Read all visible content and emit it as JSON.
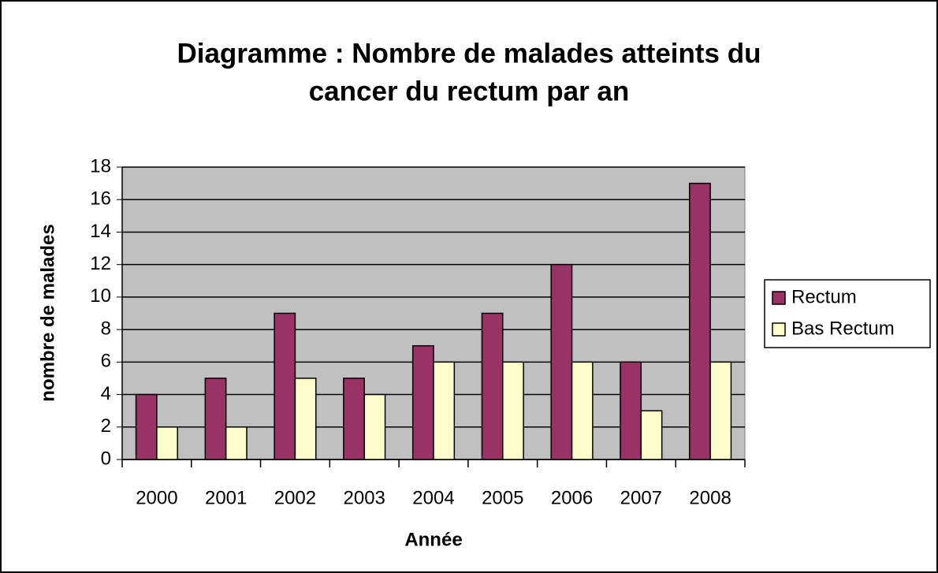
{
  "chart_data": {
    "type": "bar",
    "title": [
      "Diagramme : Nombre de malades atteints du",
      "cancer du rectum par an"
    ],
    "x_label": "Année",
    "y_label": "nombre de malades",
    "categories": [
      "2000",
      "2001",
      "2002",
      "2003",
      "2004",
      "2005",
      "2006",
      "2007",
      "2008"
    ],
    "series": [
      {
        "name": "Rectum",
        "color": "#993366",
        "values": [
          4,
          5,
          9,
          5,
          7,
          9,
          12,
          6,
          17
        ]
      },
      {
        "name": "Bas Rectum",
        "color": "#ffffcc",
        "values": [
          2,
          2,
          5,
          4,
          6,
          6,
          6,
          3,
          6
        ]
      }
    ],
    "ylim": [
      0,
      18
    ],
    "yticks": [
      0,
      2,
      4,
      6,
      8,
      10,
      12,
      14,
      16,
      18
    ],
    "grid": true,
    "legend": "right",
    "plot_background": "#c0c0c0"
  }
}
